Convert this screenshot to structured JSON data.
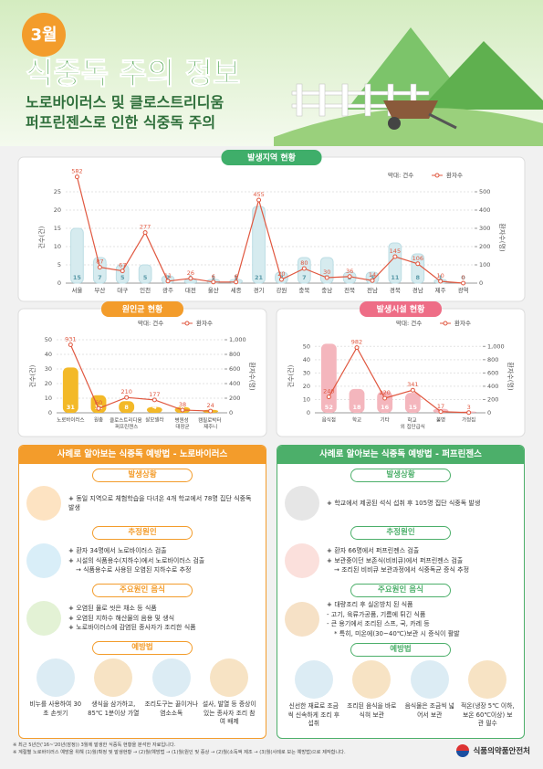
{
  "header": {
    "month": "3월",
    "title": "식중독 주의 정보",
    "subtitle": [
      "노로바이러스 및 클로스트리디움",
      "퍼프린젠스로 인한 식중독 주의"
    ]
  },
  "chart_data": [
    {
      "type": "combo",
      "title": "발생지역 현황",
      "ylabel": "건수(건)",
      "y2label": "환자수(명)",
      "categories": [
        "서울",
        "부산",
        "대구",
        "인천",
        "광주",
        "대전",
        "울산",
        "세종",
        "경기",
        "강원",
        "충북",
        "충남",
        "전북",
        "전남",
        "경북",
        "경남",
        "제주",
        "광역"
      ],
      "series": [
        {
          "name": "막대: 건수",
          "color": "#d6ebef",
          "values": [
            15,
            7,
            5,
            5,
            2,
            1,
            1,
            1,
            21,
            3,
            7,
            7,
            3,
            3,
            11,
            8,
            1,
            0
          ]
        },
        {
          "name": "환자수",
          "color": "#e0573f",
          "axis": "y2",
          "values": [
            582,
            87,
            67,
            277,
            11,
            26,
            6,
            6,
            455,
            20,
            80,
            30,
            36,
            14,
            145,
            106,
            10,
            0
          ]
        }
      ],
      "ylim": [
        0,
        25
      ],
      "yticks": [
        0,
        5,
        10,
        15,
        20,
        25
      ],
      "y2lim": [
        0,
        500
      ],
      "y2ticks": [
        0,
        100,
        200,
        300,
        400,
        500
      ]
    },
    {
      "type": "combo",
      "title": "원인균 현황",
      "ylabel": "건수(건)",
      "y2label": "환자수(명)",
      "categories": [
        "노로바이러스",
        "원충",
        "클로스트리디움 퍼프린젠스",
        "살모넬라",
        "병원성 대장균",
        "캠필로박터 제주니"
      ],
      "series": [
        {
          "name": "막대: 건수",
          "color": "#f3b928",
          "values": [
            31,
            12,
            8,
            4,
            4,
            2
          ]
        },
        {
          "name": "환자수",
          "color": "#e0573f",
          "axis": "y2",
          "values": [
            931,
            60,
            210,
            177,
            38,
            24
          ]
        }
      ],
      "ylim": [
        0,
        50
      ],
      "yticks": [
        0,
        10,
        20,
        30,
        40,
        50
      ],
      "y2lim": [
        0,
        1000
      ],
      "y2ticks": [
        0,
        200,
        400,
        600,
        800,
        {
          "value": 1000,
          "label": "1,000"
        }
      ]
    },
    {
      "type": "combo",
      "title": "발생시설 현황",
      "ylabel": "건수(건)",
      "y2label": "환자수(명)",
      "categories": [
        "음식점",
        "학교",
        "기타",
        "학교 외 집단급식",
        "불명",
        "가정집"
      ],
      "series": [
        {
          "name": "막대: 건수",
          "color": "#f4b6bd",
          "values": [
            52,
            18,
            16,
            15,
            3,
            1
          ]
        },
        {
          "name": "환자수",
          "color": "#e0573f",
          "axis": "y2",
          "values": [
            240,
            982,
            220,
            341,
            17,
            3
          ]
        }
      ],
      "ylim": [
        0,
        55
      ],
      "yticks": [
        0,
        10,
        20,
        30,
        40,
        50
      ],
      "y2lim": [
        0,
        1100
      ],
      "y2ticks": [
        0,
        200,
        400,
        600,
        800,
        {
          "value": 1000,
          "label": "1,000"
        }
      ]
    }
  ],
  "cases": [
    {
      "title": "사례로 알아보는 식중독 예방법 - 노로바이러스",
      "blocks": [
        {
          "heading": "발생상황",
          "items": [
            "동일 지역으로 체험학습을 다녀온 4개 학교에서 78명 집단 식중독 발생"
          ]
        },
        {
          "heading": "추정원인",
          "items": [
            "환자 34명에서 노로바이러스 검출",
            "시설의 식품용수(지하수)에서 노로바이러스 검출",
            "→ 식품용수로 사용된 오염된 지하수로 추정"
          ]
        },
        {
          "heading": "주요원인 음식",
          "items": [
            "오염된 물로 씻은 채소 등 식품",
            "오염된 지하수 해산물의 음용 및 생식",
            "노로바이러스에 감염된 종사자가 조리한 식품"
          ]
        }
      ],
      "prevention": {
        "heading": "예방법",
        "items": [
          "비누를 사용하여 30초 손씻기",
          "생식을 삼가하고, 85℃ 1분이상 가열",
          "조리도구는 끓이거나 염소소독",
          "설사, 발열 등 증상이 있는 종사자 조리 참여 배제"
        ]
      }
    },
    {
      "title": "사례로 알아보는 식중독 예방법 - 퍼프린젠스",
      "blocks": [
        {
          "heading": "발생상황",
          "items": [
            "학교에서 제공된 석식 섭취 후 105명 집단 식중독 발생"
          ]
        },
        {
          "heading": "추정원인",
          "items": [
            "환자 66명에서 퍼프린젠스 검출",
            "보관중이던 보존식(비비큐)에서 퍼프린젠스 검출",
            "→ 조리된 비비큐 보관과정에서 식중독균 증식 추정"
          ]
        },
        {
          "heading": "주요원인 음식",
          "items": [
            "대량조리 후 실온방치 된 식품",
            "- 고기, 육류가공품, 기름에 튀긴 식품",
            "- 큰 용기에서 조리된 스프, 국, 카레 등",
            "* 특히, 미온에(30~40℃)보관 시 증식이 활발"
          ]
        }
      ],
      "prevention": {
        "heading": "예방법",
        "items": [
          "신선한 재료로 조금씩 신속하게 조리 후 섭취",
          "조리된 음식을 바로 식혀 보관",
          "음식물은 조금씩 넓어서 보관",
          "적온(냉장 5℃ 이하, 보온 60℃이상) 보관 필수"
        ]
      }
    }
  ],
  "footer": {
    "notes": [
      "※ 최근 5년간('16~'20년(잠정)) 3월에 발생한 식중독 현황을 분석한 자료입니다.",
      "※ 계절별 노로바이러스 예방을 위해 (1)월(확정 및 발생현황 → (2)월(예방법 → (1)월(원인 및 증상 → (2)월(소독액 제조 → (3)월(사례로 보는 예방법)으로 제작합니다."
    ],
    "agency": "식품의약품안전처"
  }
}
